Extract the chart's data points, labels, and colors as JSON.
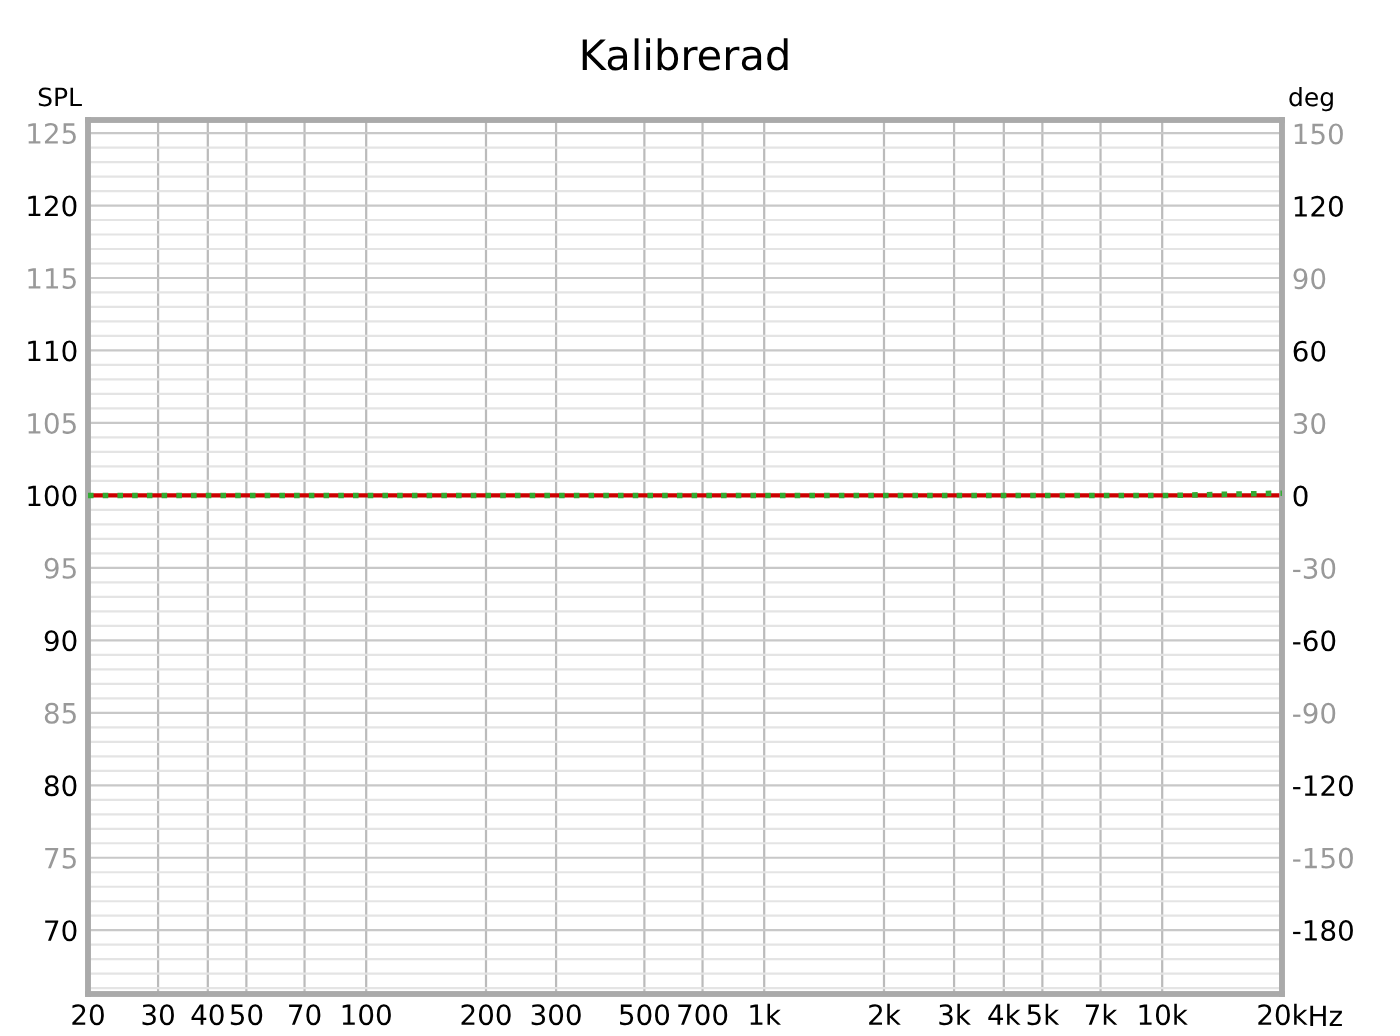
{
  "chart_data": {
    "type": "line",
    "title": "Kalibrerad",
    "ylabel": "SPL",
    "y2label": "deg",
    "log": "x",
    "grid": true,
    "legend": false,
    "xlim": [
      20,
      20000
    ],
    "xticks": [
      20,
      30,
      40,
      50,
      70,
      100,
      200,
      300,
      500,
      700,
      {
        "value": 1000,
        "label": "1k"
      },
      {
        "value": 2000,
        "label": "2k"
      },
      {
        "value": 3000,
        "label": "3k"
      },
      {
        "value": 4000,
        "label": "4k"
      },
      {
        "value": 5000,
        "label": "5k"
      },
      {
        "value": 7000,
        "label": "7k"
      },
      {
        "value": 10000,
        "label": "10k"
      },
      {
        "value": 20000,
        "label": "20k"
      }
    ],
    "xlabel": "Hz",
    "ylim": [
      65.6,
      125.9
    ],
    "yticks": [
      70,
      75,
      80,
      85,
      90,
      95,
      100,
      105,
      110,
      115,
      120,
      125
    ],
    "y2lim": [
      -206.5,
      155.6
    ],
    "y2ticks": [
      -180,
      -150,
      -120,
      -90,
      -60,
      -30,
      0,
      30,
      60,
      90,
      120,
      150
    ],
    "series": [
      {
        "color": "#cc0000",
        "x": [
          20,
          20000
        ],
        "values": [
          100,
          100
        ],
        "line_style": "solid"
      },
      {
        "color": "#33aa33",
        "axis": "y2",
        "x": [
          20,
          10000,
          20000
        ],
        "values": [
          0,
          0,
          1
        ],
        "line_style": "dotted"
      }
    ]
  }
}
